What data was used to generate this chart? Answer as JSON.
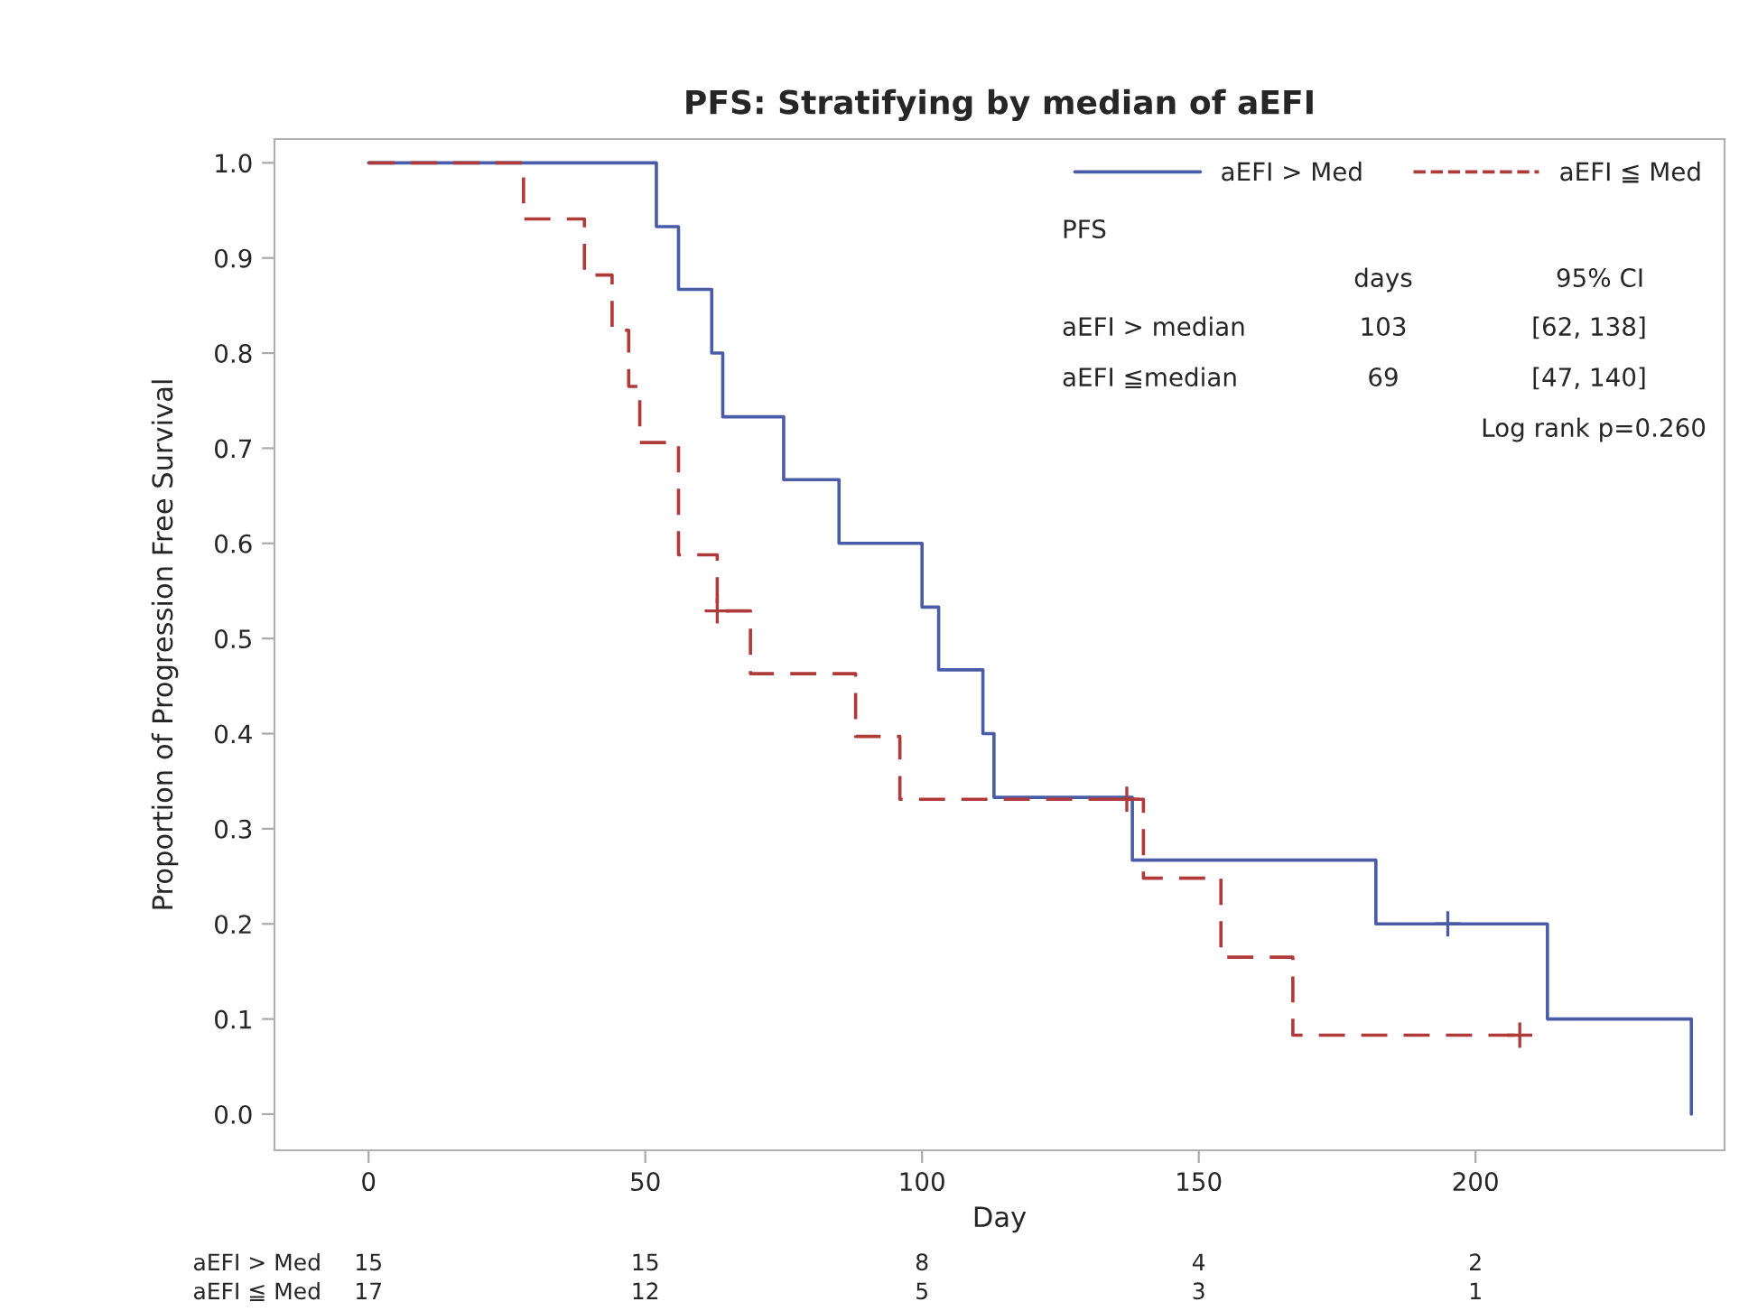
{
  "chart_data": {
    "type": "step",
    "title": "PFS: Stratifying by median of aEFI",
    "xlabel": "Day",
    "ylabel": "Proportion of Progression Free Survival",
    "xlim": [
      -17,
      245
    ],
    "ylim": [
      -0.038,
      1.025
    ],
    "xticks": [
      0,
      50,
      100,
      150,
      200
    ],
    "yticks": [
      {
        "value": 0,
        "label": "0.0"
      },
      0.1,
      0.2,
      0.3,
      0.4,
      0.5,
      0.6,
      0.7,
      0.8,
      0.9,
      {
        "value": 1,
        "label": "1.0"
      }
    ],
    "grid": false,
    "legend": "top right",
    "series": [
      {
        "name": "aEFI > Med",
        "color": "#4a5ca8",
        "line_style": "solid",
        "x": [
          0,
          52,
          56,
          62,
          64,
          75,
          85,
          100,
          103,
          111,
          113,
          138,
          182,
          213,
          239
        ],
        "values": [
          1.0,
          0.933,
          0.867,
          0.8,
          0.733,
          0.667,
          0.6,
          0.533,
          0.467,
          0.4,
          0.333,
          0.267,
          0.2,
          0.1,
          0.0
        ]
      },
      {
        "name": "aEFI ≦ Med",
        "color": "#b03a3a",
        "line_style": "dashed",
        "x": [
          0,
          28,
          39,
          44,
          47,
          49,
          56,
          63,
          69,
          88,
          96,
          140,
          154,
          167,
          210
        ],
        "values": [
          1.0,
          0.941,
          0.882,
          0.824,
          0.765,
          0.706,
          0.588,
          0.529,
          0.463,
          0.397,
          0.331,
          0.248,
          0.165,
          0.083,
          0.083
        ]
      },
      {
        "type": "scatter",
        "color": "#4a5ca8",
        "marker": "cross",
        "x": [
          195
        ],
        "values": [
          0.2
        ]
      },
      {
        "type": "scatter",
        "color": "#b03a3a",
        "marker": "cross",
        "x": [
          63,
          137,
          208
        ],
        "values": [
          0.529,
          0.331,
          0.083
        ]
      }
    ],
    "annotations": [
      "PFS",
      "days",
      "95% CI",
      "aEFI > median",
      "103",
      "[62, 138]",
      "aEFI ≦median",
      "69",
      "[47, 140]",
      "Log rank p=0.260",
      "aEFI > Med",
      "15",
      "15",
      "8",
      "4",
      "2",
      "aEFI ≦ Med",
      "17",
      "12",
      "5",
      "3",
      "1"
    ]
  }
}
